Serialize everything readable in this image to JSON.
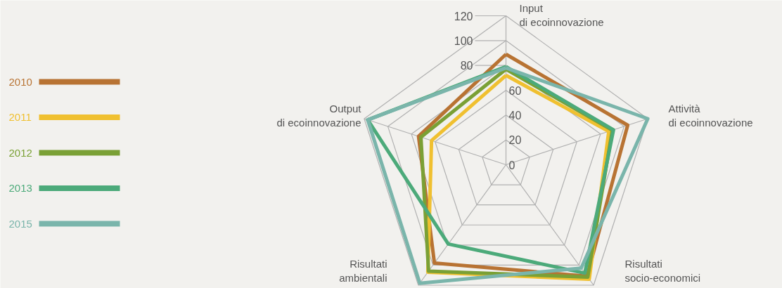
{
  "chart_data": {
    "type": "radar",
    "categories": [
      "Input\ndi ecoinnovazione",
      "Attività\ndi ecoinnovazione",
      "Risultati\nsocio-economici",
      "Risultati\nambientali",
      "Output\ndi ecoinnovazione"
    ],
    "ylim": [
      0,
      120
    ],
    "yticks": [
      0,
      20,
      40,
      60,
      80,
      100,
      120
    ],
    "grid": true,
    "legend": "left",
    "series": [
      {
        "name": "2010",
        "color": "#b87333",
        "values": [
          89,
          103,
          111,
          98,
          74
        ]
      },
      {
        "name": "2011",
        "color": "#f0c030",
        "values": [
          72,
          87,
          114,
          107,
          63
        ]
      },
      {
        "name": "2012",
        "color": "#7aa035",
        "values": [
          77,
          90,
          112,
          106,
          72
        ]
      },
      {
        "name": "2013",
        "color": "#4caa7a",
        "values": [
          79,
          91,
          108,
          79,
          117
        ]
      },
      {
        "name": "2015",
        "color": "#7ab5ab",
        "values": [
          78,
          120,
          103,
          118,
          117
        ]
      }
    ]
  }
}
